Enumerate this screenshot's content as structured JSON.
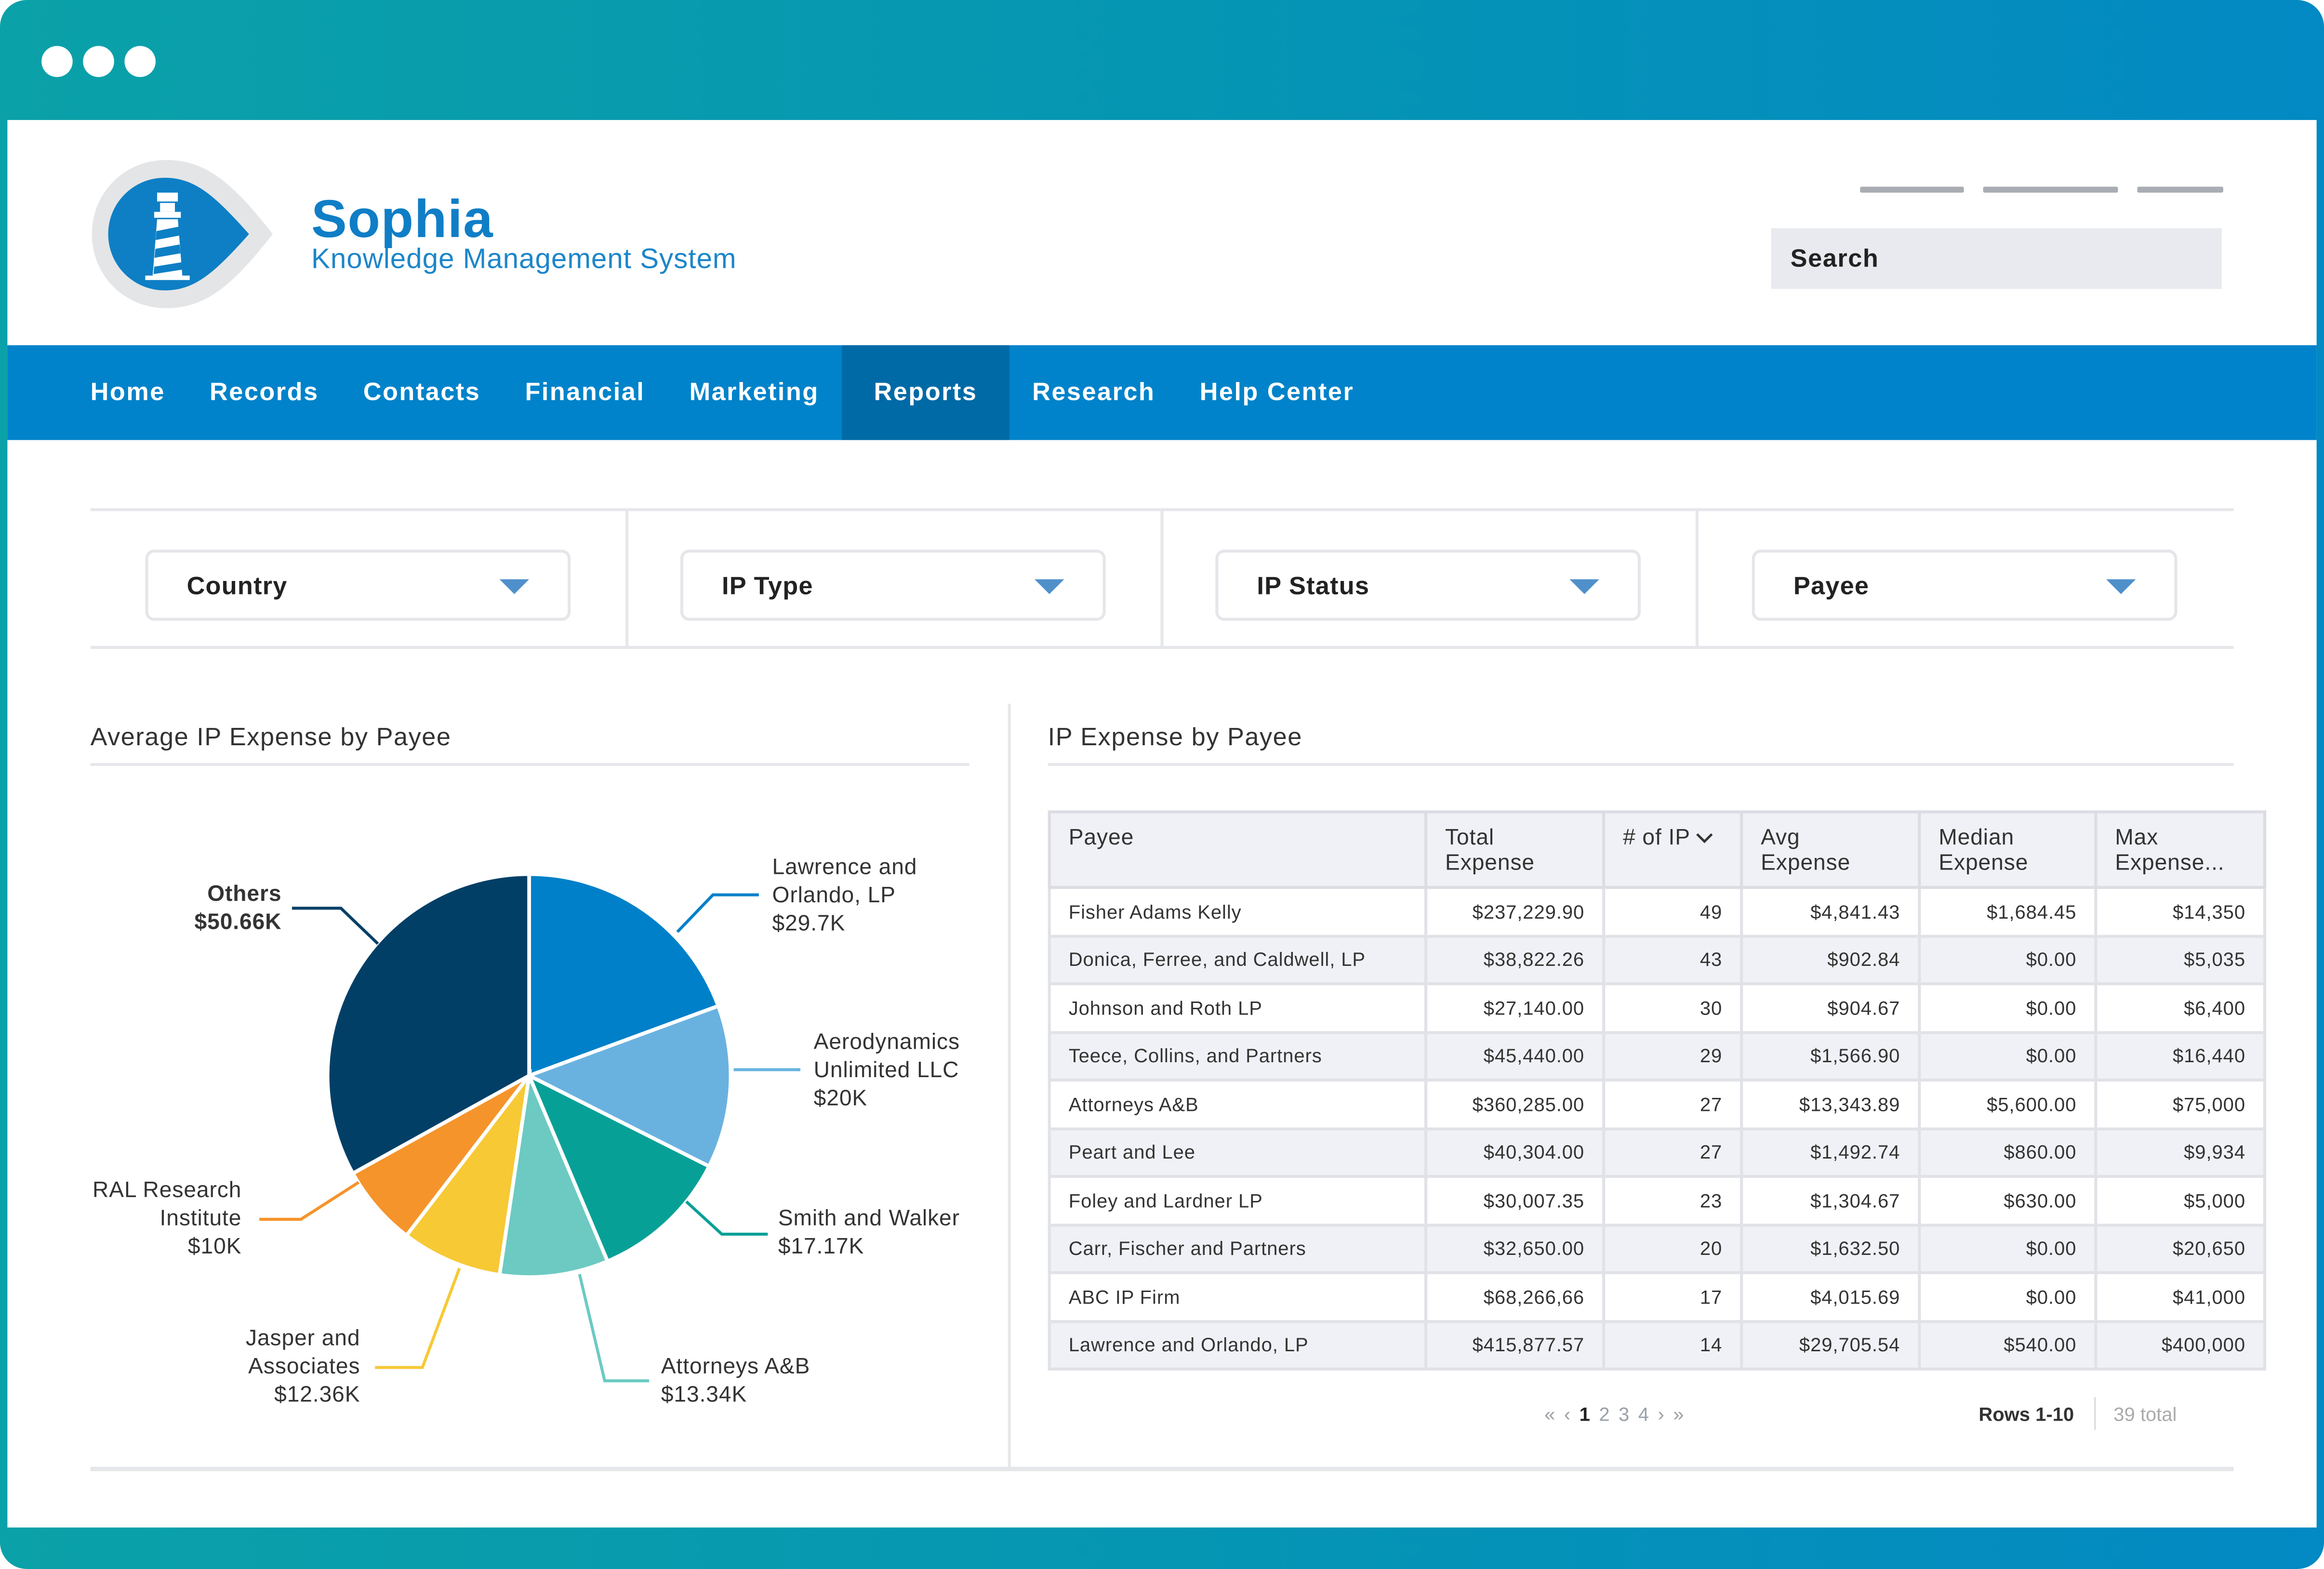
{
  "app": {
    "name": "Sophia",
    "subtitle": "Knowledge Management System"
  },
  "search": {
    "placeholder": "Search"
  },
  "nav": {
    "items": [
      {
        "label": "Home"
      },
      {
        "label": "Records"
      },
      {
        "label": "Contacts"
      },
      {
        "label": "Financial"
      },
      {
        "label": "Marketing"
      },
      {
        "label": "Reports",
        "active": true
      },
      {
        "label": "Research"
      },
      {
        "label": "Help Center"
      }
    ]
  },
  "filters": [
    {
      "label": "Country"
    },
    {
      "label": "IP Type"
    },
    {
      "label": "IP Status"
    },
    {
      "label": "Payee"
    }
  ],
  "pie_panel": {
    "title": "Average IP Expense by Payee"
  },
  "chart_data": {
    "type": "pie",
    "title": "Average IP Expense by Payee",
    "slices": [
      {
        "name": "Lawrence and Orlando, LP",
        "label_lines": [
          "Lawrence and",
          "Orlando, LP"
        ],
        "value_label": "$29.7K",
        "value": 29.7,
        "color": "#0080c9"
      },
      {
        "name": "Aerodynamics Unlimited LLC",
        "label_lines": [
          "Aerodynamics",
          "Unlimited LLC"
        ],
        "value_label": "$20K",
        "value": 20.0,
        "color": "#69b2e0"
      },
      {
        "name": "Smith and Walker",
        "label_lines": [
          "Smith and Walker"
        ],
        "value_label": "$17.17K",
        "value": 17.17,
        "color": "#07a097"
      },
      {
        "name": "Attorneys A&B",
        "label_lines": [
          "Attorneys A&B"
        ],
        "value_label": "$13.34K",
        "value": 13.34,
        "color": "#6ccac3"
      },
      {
        "name": "Jasper and Associates",
        "label_lines": [
          "Jasper and",
          "Associates"
        ],
        "value_label": "$12.36K",
        "value": 12.36,
        "color": "#f6c935"
      },
      {
        "name": "RAL Research Institute",
        "label_lines": [
          "RAL Research",
          "Institute"
        ],
        "value_label": "$10K",
        "value": 10.0,
        "color": "#f5942a"
      },
      {
        "name": "Others",
        "label_lines": [
          "Others"
        ],
        "value_label": "$50.66K",
        "value": 50.66,
        "color": "#023f66"
      }
    ]
  },
  "table_panel": {
    "title": "IP Expense by Payee",
    "columns": [
      {
        "label": "Payee"
      },
      {
        "label": "Total\nExpense"
      },
      {
        "label": "# of IP",
        "sorted": "desc"
      },
      {
        "label": "Avg\nExpense"
      },
      {
        "label": "Median\nExpense"
      },
      {
        "label": "Max\nExpense..."
      }
    ],
    "rows": [
      [
        "Fisher Adams Kelly",
        "$237,229.90",
        "49",
        "$4,841.43",
        "$1,684.45",
        "$14,350"
      ],
      [
        "Donica, Ferree, and Caldwell, LP",
        "$38,822.26",
        "43",
        "$902.84",
        "$0.00",
        "$5,035"
      ],
      [
        "Johnson and Roth LP",
        "$27,140.00",
        "30",
        "$904.67",
        "$0.00",
        "$6,400"
      ],
      [
        "Teece, Collins, and Partners",
        "$45,440.00",
        "29",
        "$1,566.90",
        "$0.00",
        "$16,440"
      ],
      [
        "Attorneys A&B",
        "$360,285.00",
        "27",
        "$13,343.89",
        "$5,600.00",
        "$75,000"
      ],
      [
        "Peart and Lee",
        "$40,304.00",
        "27",
        "$1,492.74",
        "$860.00",
        "$9,934"
      ],
      [
        "Foley and Lardner LP",
        "$30,007.35",
        "23",
        "$1,304.67",
        "$630.00",
        "$5,000"
      ],
      [
        "Carr, Fischer and Partners",
        "$32,650.00",
        "20",
        "$1,632.50",
        "$0.00",
        "$20,650"
      ],
      [
        "ABC IP Firm",
        "$68,266,66",
        "17",
        "$4,015.69",
        "$0.00",
        "$41,000"
      ],
      [
        "Lawrence and Orlando, LP",
        "$415,877.57",
        "14",
        "$29,705.54",
        "$540.00",
        "$400,000"
      ]
    ],
    "pagination": {
      "first": "«",
      "prev": "‹",
      "pages": [
        "1",
        "2",
        "3",
        "4"
      ],
      "current": "1",
      "next": "›",
      "last": "»",
      "rows_label": "Rows 1-10",
      "total_label": "39 total"
    }
  },
  "colors": {
    "frame_start": "#0ba1a8",
    "frame_end": "#0389c3",
    "nav": "#0083ca",
    "nav_active": "#006aa6",
    "brand": "#0f7ec6"
  },
  "icons": [
    "lighthouse-logo-icon",
    "caret-down-icon",
    "sort-desc-icon",
    "window-dot-icon"
  ]
}
